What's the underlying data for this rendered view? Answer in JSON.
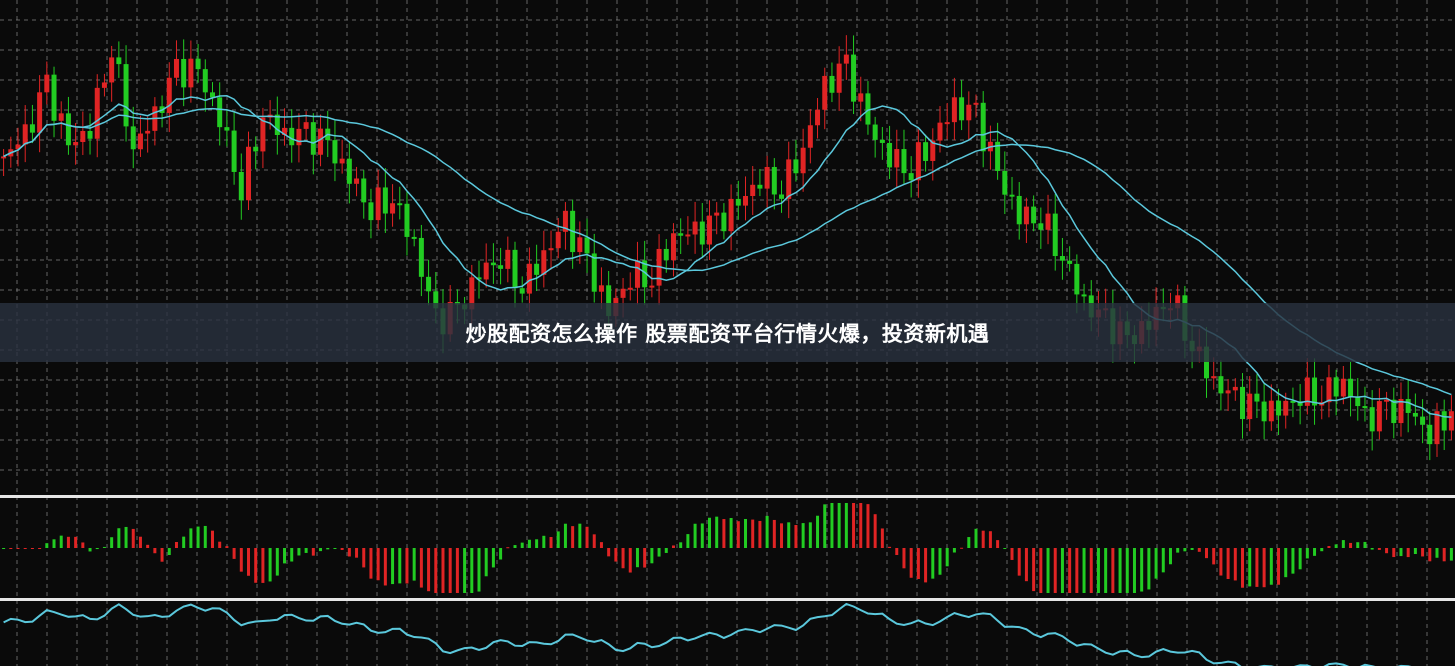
{
  "banner": {
    "title": "炒股配资怎么操作 股票配资平台行情火爆，投资新机遇"
  },
  "colors": {
    "background": "#0a0a0a",
    "up": "#e02424",
    "down": "#22cc22",
    "ma": "#5bc8dc",
    "grid": "#8a8a8a",
    "separator": "#e6e6e6"
  },
  "chart_data": {
    "type": "candlestick",
    "title": "",
    "grid": true,
    "panes": [
      "price candlesticks with two moving averages",
      "histogram oscillator",
      "line oscillator"
    ],
    "closes": [
      64,
      68,
      78,
      66,
      70,
      87,
      66,
      72,
      81,
      81,
      72,
      58,
      73,
      68,
      68,
      66,
      60,
      54,
      56,
      46,
      30,
      32,
      40,
      44,
      38,
      44,
      50,
      42,
      32,
      40,
      40,
      48,
      48,
      50,
      54,
      60,
      58,
      66,
      78,
      82,
      70,
      64,
      62,
      68,
      74,
      72,
      60,
      52,
      52,
      44,
      34,
      30,
      26,
      30,
      36,
      26,
      18,
      14,
      12,
      12,
      16,
      16,
      18,
      10,
      12,
      12,
      8,
      12
    ]
  }
}
